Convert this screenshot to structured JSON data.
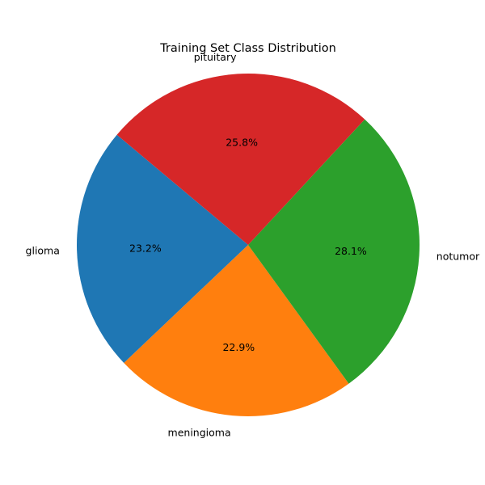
{
  "chart_data": {
    "type": "pie",
    "title": "Training Set Class Distribution",
    "start_angle_deg": 140,
    "direction": "counterclockwise",
    "slices": [
      {
        "label": "glioma",
        "value": 23.2,
        "pct_label": "23.2%",
        "color": "#1f77b4"
      },
      {
        "label": "meningioma",
        "value": 22.9,
        "pct_label": "22.9%",
        "color": "#ff7f0e"
      },
      {
        "label": "notumor",
        "value": 28.1,
        "pct_label": "28.1%",
        "color": "#2ca02c"
      },
      {
        "label": "pituitary",
        "value": 25.8,
        "pct_label": "25.8%",
        "color": "#d62728"
      }
    ]
  }
}
